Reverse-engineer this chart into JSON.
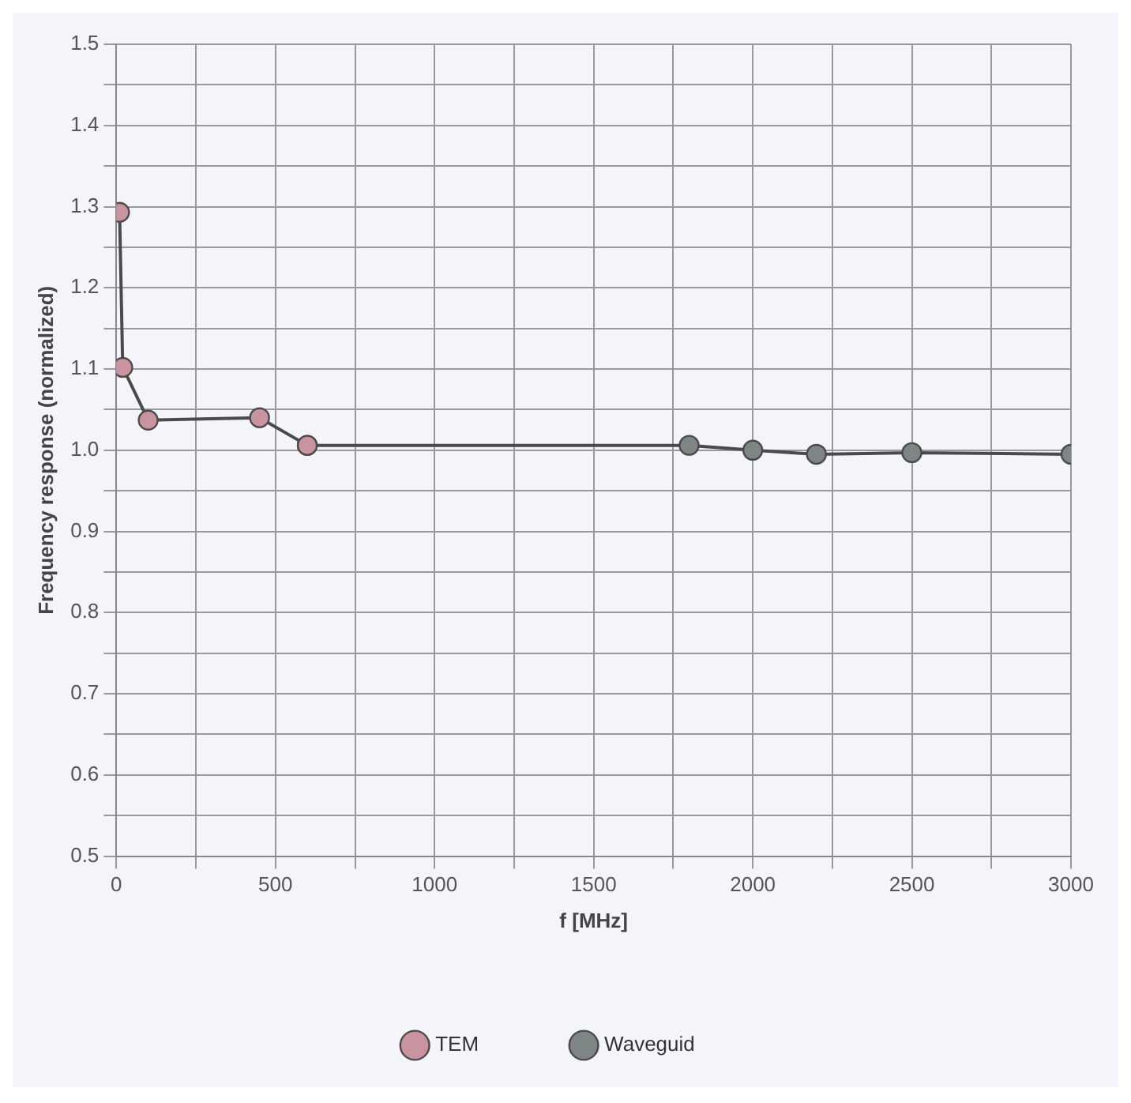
{
  "chart_data": {
    "type": "line",
    "xlabel": "f [MHz]",
    "ylabel": "Frequency response (normalized)",
    "series": [
      {
        "name": "TEM",
        "color": "#c9939f",
        "x": [
          10,
          20,
          100,
          450,
          600
        ],
        "values": [
          1.293,
          1.102,
          1.037,
          1.04,
          1.006
        ]
      },
      {
        "name": "Waveguid",
        "color": "#7d8585",
        "x": [
          600,
          1800,
          2000,
          2200,
          2500,
          3000
        ],
        "values": [
          1.006,
          1.006,
          1.0,
          0.995,
          0.997,
          0.995
        ]
      }
    ],
    "xlim": [
      0,
      3000
    ],
    "xticks": [
      0,
      {
        "value": 250,
        "label": null
      },
      500,
      {
        "value": 750,
        "label": null
      },
      1000,
      {
        "value": 1250,
        "label": null
      },
      1500,
      {
        "value": 1750,
        "label": null
      },
      2000,
      {
        "value": 2250,
        "label": null
      },
      2500,
      {
        "value": 2750,
        "label": null
      },
      3000
    ],
    "ylim": [
      0.5,
      1.5
    ],
    "yticks": [
      {
        "value": 0.5,
        "label": "0.5"
      },
      {
        "value": 0.55,
        "label": null
      },
      {
        "value": 0.6,
        "label": "0.6"
      },
      {
        "value": 0.65,
        "label": null
      },
      {
        "value": 0.7,
        "label": "0.7"
      },
      {
        "value": 0.75,
        "label": null
      },
      {
        "value": 0.8,
        "label": "0.8"
      },
      {
        "value": 0.85,
        "label": null
      },
      {
        "value": 0.9,
        "label": "0.9"
      },
      {
        "value": 0.95,
        "label": null
      },
      {
        "value": 1.0,
        "label": "1.0"
      },
      {
        "value": 1.05,
        "label": null
      },
      {
        "value": 1.1,
        "label": "1.1"
      },
      {
        "value": 1.15,
        "label": null
      },
      {
        "value": 1.2,
        "label": "1.2"
      },
      {
        "value": 1.25,
        "label": null
      },
      {
        "value": 1.3,
        "label": "1.3"
      },
      {
        "value": 1.35,
        "label": null
      },
      {
        "value": 1.4,
        "label": "1.4"
      },
      {
        "value": 1.45,
        "label": null
      },
      {
        "value": 1.5,
        "label": "1.5"
      }
    ],
    "grid": true,
    "legend": "bottom",
    "marker": "circle",
    "line_style": "solid"
  }
}
